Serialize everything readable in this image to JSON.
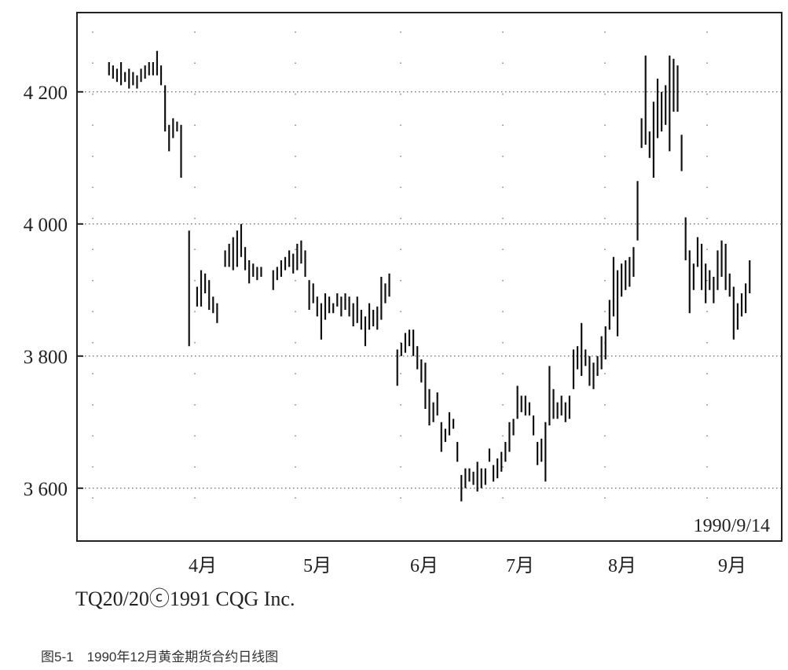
{
  "chart_data": {
    "type": "bar",
    "subtype": "ohlc-range-bars",
    "title": "",
    "xlabel": "",
    "ylabel": "",
    "ylim": [
      3520,
      4320
    ],
    "yticks": [
      3600,
      3800,
      4000,
      4200
    ],
    "ytick_labels": [
      "3 600",
      "3 800",
      "4 000",
      "4 200"
    ],
    "xticks": [
      "4月",
      "5月",
      "6月",
      "7月",
      "8月",
      "9月"
    ],
    "date_stamp": "1990/9/14",
    "copyright": "TQ20/20ⓒ1991 CQG Inc.",
    "grid": "dotted",
    "series": [
      {
        "values": [
          [
            3.0,
            4225,
            4245
          ],
          [
            3.1,
            4220,
            4240
          ],
          [
            3.2,
            4215,
            4235
          ],
          [
            3.3,
            4210,
            4245
          ],
          [
            3.4,
            4215,
            4230
          ],
          [
            3.5,
            4205,
            4235
          ],
          [
            3.6,
            4210,
            4230
          ],
          [
            3.7,
            4205,
            4225
          ],
          [
            3.8,
            4215,
            4235
          ],
          [
            3.9,
            4220,
            4240
          ],
          [
            4.0,
            4225,
            4245
          ],
          [
            4.1,
            4225,
            4245
          ],
          [
            4.2,
            4225,
            4262
          ],
          [
            4.3,
            4210,
            4240
          ],
          [
            4.4,
            4140,
            4210
          ],
          [
            4.5,
            4110,
            4150
          ],
          [
            4.6,
            4130,
            4160
          ],
          [
            4.7,
            4140,
            4155
          ],
          [
            4.8,
            4070,
            4150
          ],
          [
            5.0,
            3815,
            3990
          ],
          [
            5.2,
            3875,
            3905
          ],
          [
            5.3,
            3875,
            3930
          ],
          [
            5.4,
            3895,
            3925
          ],
          [
            5.5,
            3870,
            3915
          ],
          [
            5.6,
            3865,
            3890
          ],
          [
            5.7,
            3850,
            3880
          ],
          [
            5.9,
            3935,
            3960
          ],
          [
            6.0,
            3935,
            3970
          ],
          [
            6.1,
            3930,
            3980
          ],
          [
            6.2,
            3935,
            3990
          ],
          [
            6.3,
            3950,
            4000
          ],
          [
            6.4,
            3930,
            3965
          ],
          [
            6.5,
            3910,
            3945
          ],
          [
            6.6,
            3920,
            3940
          ],
          [
            6.7,
            3915,
            3935
          ],
          [
            6.8,
            3920,
            3935
          ],
          [
            7.1,
            3900,
            3930
          ],
          [
            7.2,
            3915,
            3935
          ],
          [
            7.3,
            3920,
            3945
          ],
          [
            7.4,
            3930,
            3950
          ],
          [
            7.5,
            3935,
            3960
          ],
          [
            7.6,
            3925,
            3955
          ],
          [
            7.7,
            3930,
            3970
          ],
          [
            7.8,
            3940,
            3975
          ],
          [
            7.9,
            3920,
            3960
          ],
          [
            8.0,
            3870,
            3915
          ],
          [
            8.1,
            3880,
            3910
          ],
          [
            8.2,
            3860,
            3890
          ],
          [
            8.3,
            3825,
            3880
          ],
          [
            8.4,
            3855,
            3895
          ],
          [
            8.5,
            3865,
            3890
          ],
          [
            8.6,
            3865,
            3880
          ],
          [
            8.7,
            3875,
            3895
          ],
          [
            8.8,
            3860,
            3890
          ],
          [
            8.9,
            3870,
            3895
          ],
          [
            9.0,
            3860,
            3890
          ],
          [
            9.1,
            3845,
            3880
          ],
          [
            9.2,
            3850,
            3890
          ],
          [
            9.3,
            3840,
            3870
          ],
          [
            9.4,
            3815,
            3860
          ],
          [
            9.5,
            3840,
            3880
          ],
          [
            9.6,
            3845,
            3870
          ],
          [
            9.7,
            3840,
            3875
          ],
          [
            9.8,
            3855,
            3920
          ],
          [
            9.9,
            3880,
            3910
          ],
          [
            10.0,
            3890,
            3925
          ],
          [
            10.2,
            3755,
            3810
          ],
          [
            10.3,
            3800,
            3820
          ],
          [
            10.4,
            3805,
            3835
          ],
          [
            10.5,
            3815,
            3840
          ],
          [
            10.6,
            3800,
            3840
          ],
          [
            10.7,
            3780,
            3815
          ],
          [
            10.8,
            3760,
            3795
          ],
          [
            10.9,
            3720,
            3790
          ],
          [
            11.0,
            3695,
            3750
          ],
          [
            11.1,
            3700,
            3730
          ],
          [
            11.2,
            3710,
            3745
          ],
          [
            11.3,
            3655,
            3700
          ],
          [
            11.4,
            3670,
            3690
          ],
          [
            11.5,
            3680,
            3715
          ],
          [
            11.6,
            3690,
            3705
          ],
          [
            11.7,
            3640,
            3670
          ],
          [
            11.8,
            3580,
            3620
          ],
          [
            11.9,
            3600,
            3630
          ],
          [
            12.0,
            3610,
            3630
          ],
          [
            12.1,
            3605,
            3625
          ],
          [
            12.2,
            3595,
            3640
          ],
          [
            12.3,
            3600,
            3630
          ],
          [
            12.4,
            3605,
            3630
          ],
          [
            12.5,
            3640,
            3660
          ],
          [
            12.6,
            3610,
            3635
          ],
          [
            12.7,
            3615,
            3645
          ],
          [
            12.8,
            3625,
            3655
          ],
          [
            12.9,
            3640,
            3670
          ],
          [
            13.0,
            3655,
            3700
          ],
          [
            13.1,
            3680,
            3705
          ],
          [
            13.2,
            3705,
            3755
          ],
          [
            13.3,
            3715,
            3740
          ],
          [
            13.4,
            3710,
            3740
          ],
          [
            13.5,
            3710,
            3730
          ],
          [
            13.6,
            3680,
            3710
          ],
          [
            13.7,
            3635,
            3670
          ],
          [
            13.8,
            3640,
            3675
          ],
          [
            13.9,
            3610,
            3700
          ],
          [
            14.0,
            3695,
            3785
          ],
          [
            14.1,
            3705,
            3750
          ],
          [
            14.2,
            3705,
            3730
          ],
          [
            14.3,
            3710,
            3740
          ],
          [
            14.4,
            3700,
            3730
          ],
          [
            14.5,
            3705,
            3740
          ],
          [
            14.6,
            3750,
            3810
          ],
          [
            14.7,
            3780,
            3815
          ],
          [
            14.8,
            3770,
            3850
          ],
          [
            14.9,
            3785,
            3810
          ],
          [
            15.0,
            3755,
            3800
          ],
          [
            15.1,
            3750,
            3790
          ],
          [
            15.2,
            3770,
            3800
          ],
          [
            15.3,
            3780,
            3830
          ],
          [
            15.4,
            3795,
            3845
          ],
          [
            15.5,
            3840,
            3885
          ],
          [
            15.6,
            3860,
            3950
          ],
          [
            15.7,
            3830,
            3930
          ],
          [
            15.8,
            3890,
            3940
          ],
          [
            15.9,
            3900,
            3945
          ],
          [
            16.0,
            3905,
            3950
          ],
          [
            16.1,
            3920,
            3965
          ],
          [
            16.2,
            3975,
            4065
          ],
          [
            16.3,
            4115,
            4160
          ],
          [
            16.4,
            4120,
            4255
          ],
          [
            16.5,
            4100,
            4140
          ],
          [
            16.6,
            4070,
            4185
          ],
          [
            16.7,
            4130,
            4220
          ],
          [
            16.8,
            4140,
            4200
          ],
          [
            16.9,
            4150,
            4210
          ],
          [
            17.0,
            4110,
            4255
          ],
          [
            17.1,
            4170,
            4250
          ],
          [
            17.2,
            4170,
            4240
          ],
          [
            17.3,
            4080,
            4135
          ],
          [
            17.4,
            3945,
            4010
          ],
          [
            17.5,
            3865,
            3960
          ],
          [
            17.6,
            3900,
            3940
          ],
          [
            17.7,
            3935,
            3980
          ],
          [
            17.8,
            3900,
            3970
          ],
          [
            17.9,
            3880,
            3940
          ],
          [
            18.0,
            3900,
            3930
          ],
          [
            18.1,
            3880,
            3920
          ],
          [
            18.2,
            3900,
            3960
          ],
          [
            18.3,
            3920,
            3975
          ],
          [
            18.4,
            3900,
            3970
          ],
          [
            18.5,
            3890,
            3925
          ],
          [
            18.6,
            3825,
            3905
          ],
          [
            18.7,
            3840,
            3880
          ],
          [
            18.8,
            3860,
            3895
          ],
          [
            18.9,
            3865,
            3910
          ],
          [
            19.0,
            3895,
            3945
          ]
        ]
      }
    ]
  },
  "caption": "图5-1　1990年12月黄金期货合约日线图"
}
